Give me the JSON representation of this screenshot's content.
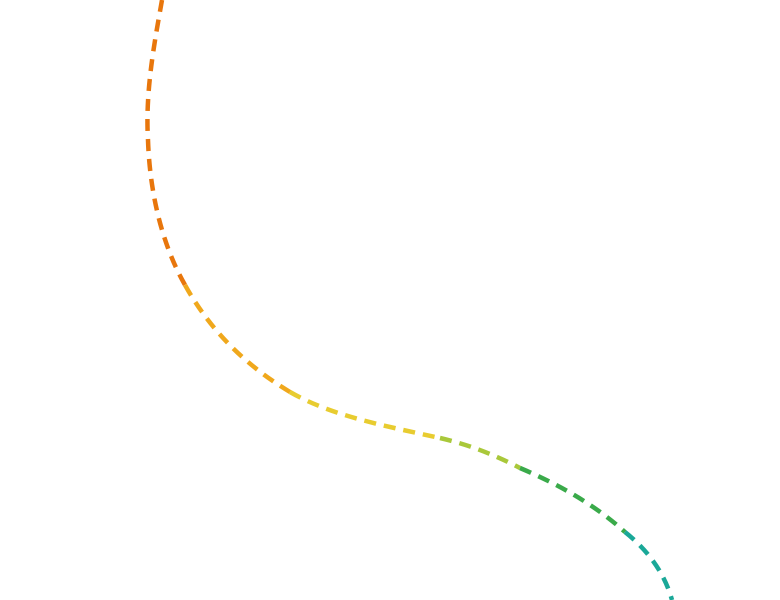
{
  "colors": {
    "background": "#ffffff",
    "segments": [
      "#e8760c",
      "#f0a81c",
      "#e8cc30",
      "#a9c83a",
      "#3aaa4a",
      "#1aa898"
    ]
  },
  "curve": {
    "style": "dashed",
    "gradient": "orange to teal"
  }
}
